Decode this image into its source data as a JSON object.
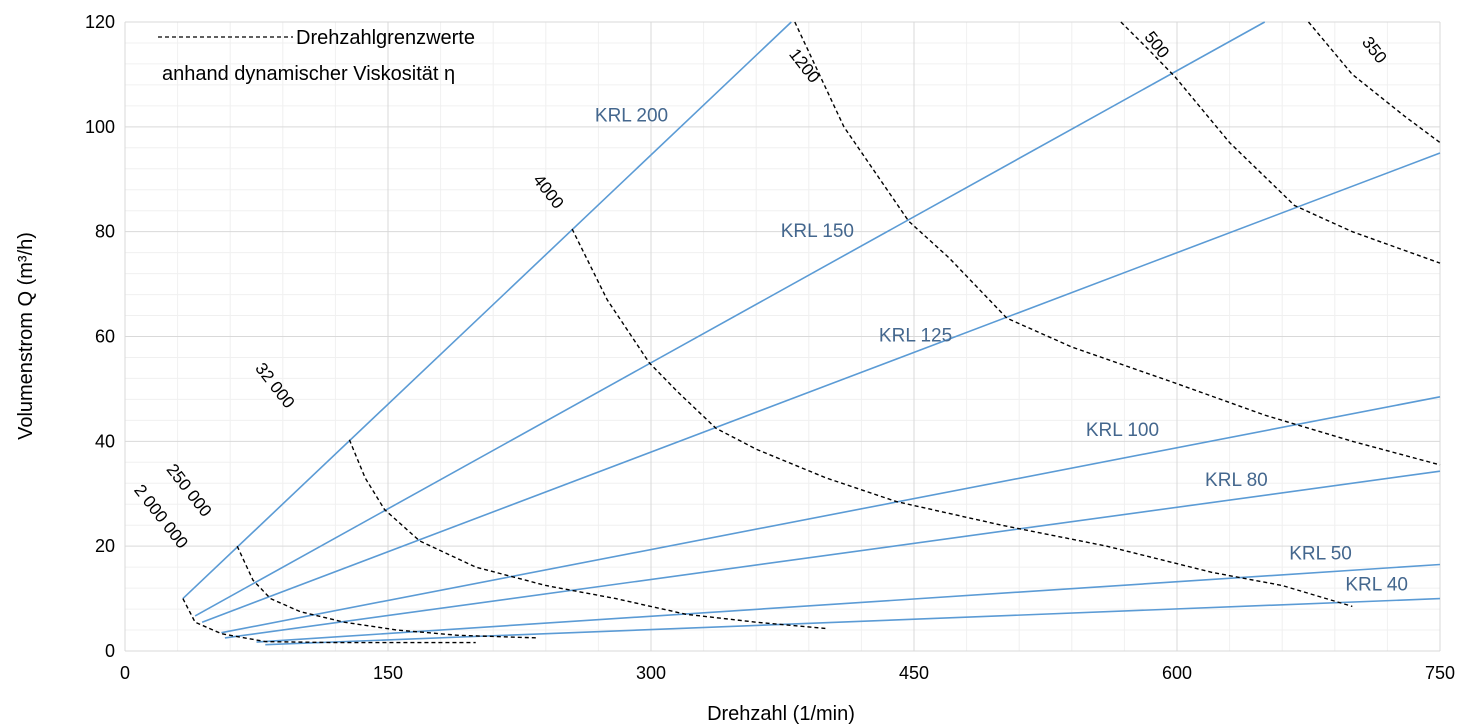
{
  "chart_data": {
    "type": "line",
    "xlabel": "Drehzahl (1/min)",
    "ylabel": "Volumenstrom Q (m³/h)",
    "xlim": [
      0,
      750
    ],
    "ylim": [
      0,
      120
    ],
    "x_ticks": [
      "0",
      "150",
      "300",
      "450",
      "600",
      "750"
    ],
    "y_ticks": [
      "0",
      "20",
      "40",
      "60",
      "80",
      "100",
      "120"
    ],
    "grid": true,
    "legend": {
      "position": "top-left",
      "line1": "Drehzahlgrenzwerte",
      "line2": "anhand dynamischer Viskosität η"
    },
    "series": [
      {
        "name": "KRL 200",
        "color": "#5b9bd5",
        "points": [
          [
            33,
            10
          ],
          [
            380,
            120
          ]
        ]
      },
      {
        "name": "KRL 150",
        "color": "#5b9bd5",
        "points": [
          [
            40,
            6.7
          ],
          [
            650,
            120
          ]
        ]
      },
      {
        "name": "KRL 125",
        "color": "#5b9bd5",
        "points": [
          [
            44,
            5.5
          ],
          [
            750,
            95
          ]
        ]
      },
      {
        "name": "KRL 100",
        "color": "#5b9bd5",
        "points": [
          [
            55,
            3.5
          ],
          [
            750,
            48.5
          ]
        ]
      },
      {
        "name": "KRL 80",
        "color": "#5b9bd5",
        "points": [
          [
            57,
            2.5
          ],
          [
            750,
            34.3
          ]
        ]
      },
      {
        "name": "KRL 50",
        "color": "#5b9bd5",
        "points": [
          [
            75,
            1.7
          ],
          [
            750,
            16.5
          ]
        ]
      },
      {
        "name": "KRL 40",
        "color": "#5b9bd5",
        "points": [
          [
            80,
            1.2
          ],
          [
            750,
            10
          ]
        ]
      }
    ],
    "series_labels": [
      {
        "text": "KRL 200",
        "x": 268,
        "y": 101
      },
      {
        "text": "KRL 150",
        "x": 374,
        "y": 79
      },
      {
        "text": "KRL 125",
        "x": 430,
        "y": 59
      },
      {
        "text": "KRL 100",
        "x": 548,
        "y": 41
      },
      {
        "text": "KRL 80",
        "x": 616,
        "y": 31.5
      },
      {
        "text": "KRL 50",
        "x": 664,
        "y": 17.5
      },
      {
        "text": "KRL 40",
        "x": 696,
        "y": 11.5
      }
    ],
    "viscosity_limits": [
      {
        "label": "2 000 000",
        "label_x": 18,
        "label_y": 25,
        "points": [
          [
            33,
            10
          ],
          [
            40,
            5.5
          ],
          [
            55,
            3.3
          ],
          [
            80,
            1.8
          ],
          [
            120,
            1.6
          ],
          [
            160,
            1.6
          ],
          [
            200,
            1.6
          ]
        ]
      },
      {
        "label": "250 000",
        "label_x": 34,
        "label_y": 30,
        "points": [
          [
            64,
            20
          ],
          [
            73,
            13.5
          ],
          [
            83,
            10
          ],
          [
            100,
            7.5
          ],
          [
            125,
            5.5
          ],
          [
            155,
            4
          ],
          [
            190,
            3
          ],
          [
            235,
            2.5
          ]
        ]
      },
      {
        "label": "32 000",
        "label_x": 83,
        "label_y": 50,
        "points": [
          [
            128,
            40.3
          ],
          [
            137,
            33
          ],
          [
            148,
            27
          ],
          [
            168,
            21
          ],
          [
            200,
            16
          ],
          [
            240,
            12.5
          ],
          [
            280,
            10
          ],
          [
            320,
            7
          ],
          [
            360,
            5.5
          ],
          [
            400,
            4.3
          ]
        ]
      },
      {
        "label": "4000",
        "label_x": 239,
        "label_y": 87,
        "points": [
          [
            255,
            80.5
          ],
          [
            275,
            67
          ],
          [
            299,
            55
          ],
          [
            315,
            49.5
          ],
          [
            337,
            42.5
          ],
          [
            360,
            38.5
          ],
          [
            400,
            33
          ],
          [
            440,
            28.5
          ],
          [
            500,
            24
          ],
          [
            560,
            20
          ],
          [
            620,
            15
          ],
          [
            660,
            12.5
          ],
          [
            700,
            8.5
          ]
        ]
      },
      {
        "label": "1200",
        "label_x": 385,
        "label_y": 111,
        "points": [
          [
            382,
            120
          ],
          [
            410,
            100
          ],
          [
            447,
            82
          ],
          [
            470,
            75
          ],
          [
            503,
            63.5
          ],
          [
            540,
            58
          ],
          [
            600,
            51
          ],
          [
            650,
            45
          ],
          [
            700,
            40
          ],
          [
            750,
            35.5
          ]
        ]
      },
      {
        "label": "500",
        "label_x": 586,
        "label_y": 115,
        "points": [
          [
            568,
            120
          ],
          [
            583,
            115
          ],
          [
            599,
            109.5
          ],
          [
            630,
            97
          ],
          [
            667,
            85
          ],
          [
            700,
            80
          ],
          [
            750,
            74
          ]
        ]
      },
      {
        "label": "350",
        "label_x": 710,
        "label_y": 114,
        "points": [
          [
            675,
            120
          ],
          [
            700,
            110
          ],
          [
            730,
            102
          ],
          [
            750,
            97
          ]
        ]
      }
    ]
  }
}
